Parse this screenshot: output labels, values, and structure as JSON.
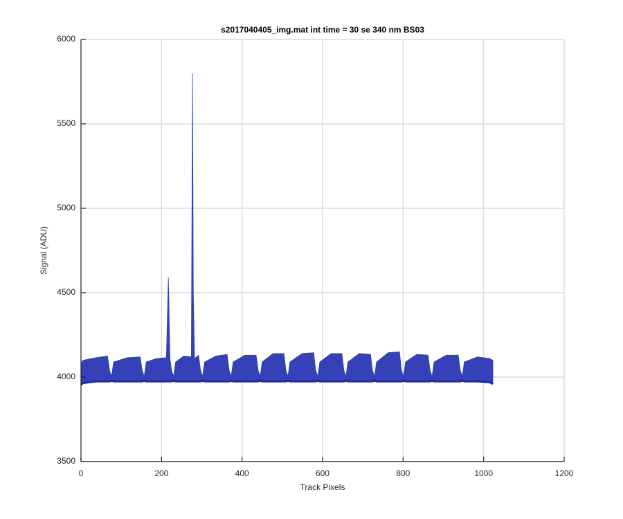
{
  "chart_data": {
    "type": "band",
    "title": "s2017040405_img.mat int time = 30 se  340 nm BS03",
    "x_label": "Track Pixels",
    "y_label": "Signal (ADU)",
    "x": [
      0,
      5,
      37,
      66,
      71,
      76,
      81,
      114,
      147,
      152,
      157,
      162,
      187,
      212,
      217,
      221,
      225,
      230,
      235,
      255,
      274,
      277,
      279,
      282,
      292,
      297,
      302,
      307,
      335,
      363,
      368,
      373,
      378,
      407,
      435,
      440,
      445,
      450,
      477,
      504,
      509,
      514,
      519,
      549,
      578,
      583,
      588,
      593,
      621,
      648,
      653,
      658,
      663,
      691,
      719,
      724,
      729,
      734,
      763,
      791,
      796,
      801,
      806,
      834,
      862,
      867,
      872,
      877,
      907,
      937,
      942,
      947,
      952,
      985,
      1015,
      1023
    ],
    "upper": [
      4080,
      4100,
      4115,
      4125,
      4040,
      4005,
      4090,
      4115,
      4120,
      4040,
      4005,
      4090,
      4110,
      4115,
      4590,
      4110,
      4040,
      4005,
      4090,
      4125,
      4120,
      5800,
      4500,
      4110,
      4130,
      4040,
      4005,
      4090,
      4125,
      4135,
      4040,
      4005,
      4090,
      4130,
      4130,
      4040,
      4005,
      4090,
      4140,
      4140,
      4040,
      4005,
      4090,
      4140,
      4145,
      4040,
      4005,
      4090,
      4140,
      4140,
      4040,
      4005,
      4090,
      4140,
      4135,
      4040,
      4005,
      4090,
      4145,
      4150,
      4040,
      4005,
      4090,
      4135,
      4130,
      4040,
      4005,
      4090,
      4130,
      4130,
      4040,
      4005,
      4090,
      4120,
      4110,
      4100
    ],
    "lower": [
      3955,
      3965,
      3975,
      3975,
      3975,
      3980,
      3975,
      3975,
      3975,
      3975,
      3980,
      3975,
      3975,
      3975,
      3975,
      3975,
      3975,
      3980,
      3975,
      3975,
      3975,
      3975,
      3975,
      3975,
      3975,
      3975,
      3980,
      3975,
      3975,
      3975,
      3975,
      3980,
      3975,
      3975,
      3975,
      3975,
      3980,
      3975,
      3975,
      3975,
      3975,
      3980,
      3975,
      3975,
      3975,
      3975,
      3980,
      3975,
      3975,
      3975,
      3975,
      3980,
      3975,
      3975,
      3975,
      3975,
      3980,
      3975,
      3975,
      3975,
      3975,
      3980,
      3975,
      3975,
      3975,
      3975,
      3980,
      3975,
      3975,
      3975,
      3975,
      3980,
      3975,
      3975,
      3970,
      3960
    ],
    "color": "#3441b8",
    "edge_color": "#262c85",
    "xlim": [
      0,
      1200
    ],
    "xticks": [
      0,
      200,
      400,
      600,
      800,
      1000,
      1200
    ],
    "ylim": [
      3500,
      6000
    ],
    "yticks": [
      3500,
      4000,
      4500,
      5000,
      5500,
      6000
    ],
    "grid": true
  }
}
